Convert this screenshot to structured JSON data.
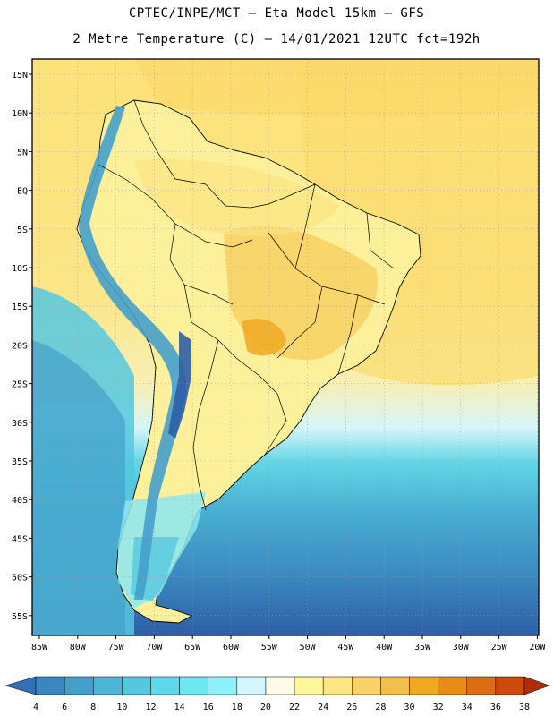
{
  "header": {
    "line1": "CPTEC/INPE/MCT –  Eta Model 15km – GFS",
    "line2": "2 Metre Temperature (C) – 14/01/2021 12UTC fct=192h"
  },
  "map": {
    "lat_labels": [
      "15N",
      "10N",
      "5N",
      "EQ",
      "5S",
      "10S",
      "15S",
      "20S",
      "25S",
      "30S",
      "35S",
      "40S",
      "45S",
      "50S",
      "55S"
    ],
    "lon_labels": [
      "85W",
      "80W",
      "75W",
      "70W",
      "65W",
      "60W",
      "55W",
      "50W",
      "45W",
      "40W",
      "35W",
      "30W",
      "25W",
      "20W"
    ]
  },
  "colorbar": {
    "labels": [
      "4",
      "6",
      "8",
      "10",
      "12",
      "14",
      "16",
      "18",
      "20",
      "22",
      "24",
      "26",
      "28",
      "30",
      "32",
      "34",
      "36",
      "38"
    ],
    "colors": [
      "#3370b5",
      "#3c86c0",
      "#44a0cb",
      "#4eb6d5",
      "#55c8df",
      "#5ed9e9",
      "#6be8f2",
      "#8df3fa",
      "#d2f6fb",
      "#fffbe6",
      "#fef69a",
      "#fde581",
      "#f8d266",
      "#f2bf4c",
      "#f1a722",
      "#e88b17",
      "#dd6d12",
      "#cc4a0c",
      "#b02b08"
    ]
  },
  "legend_colors": {
    "ocean_cold": "#2d5fa6",
    "ocean_mid": "#4cb6d6",
    "ocean_cool": "#62d6e6",
    "ocean_warm": "#fde581",
    "land_warm": "#fef69a",
    "land_hot": "#f2bf4c",
    "andes_cold": "#55c8df"
  }
}
